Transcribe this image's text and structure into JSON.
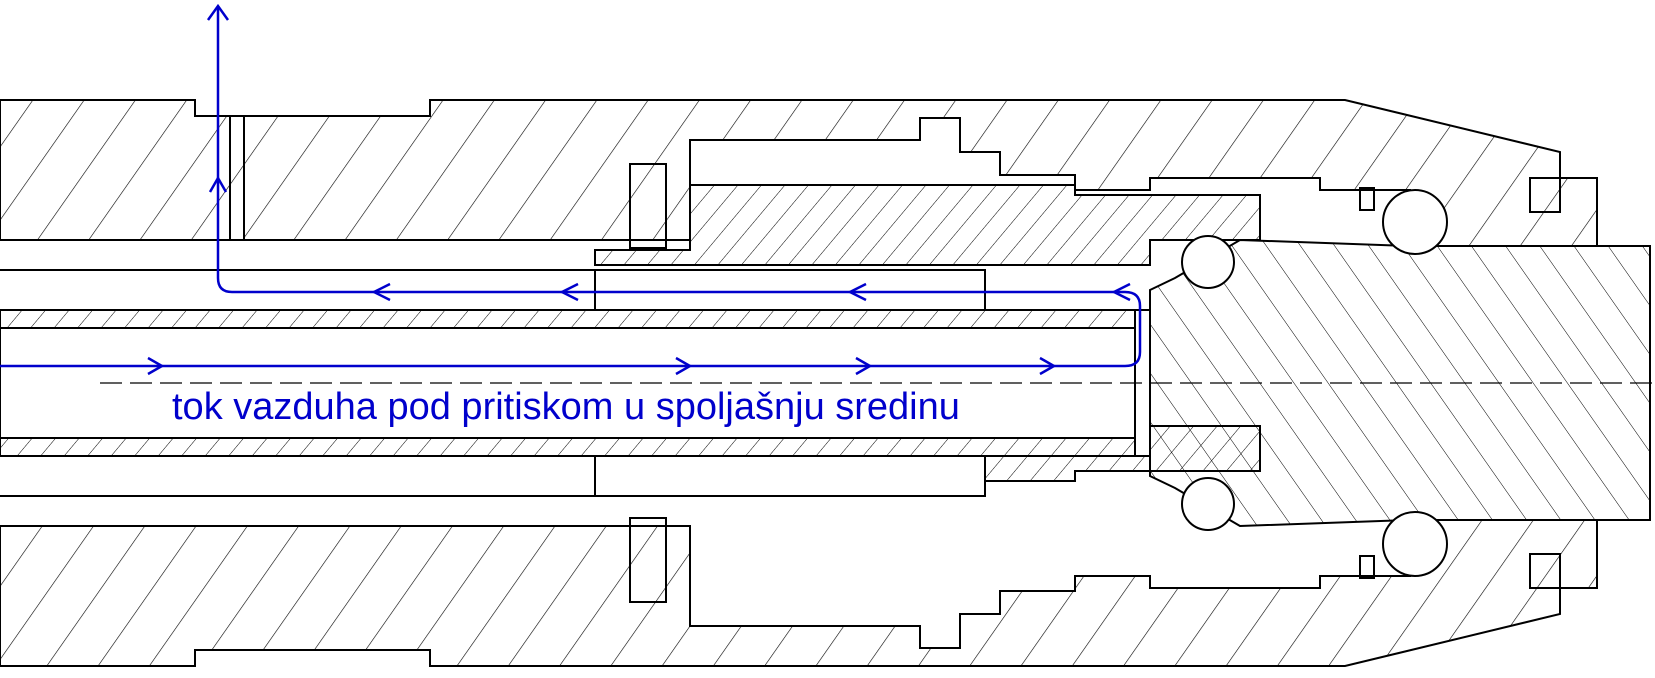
{
  "diagram": {
    "caption": "tok vazduha pod pritiskom u spoljašnju sredinu",
    "colors": {
      "outline": "#000000",
      "hatch": "#000000",
      "flow": "#0000cc",
      "background": "#ffffff"
    }
  }
}
